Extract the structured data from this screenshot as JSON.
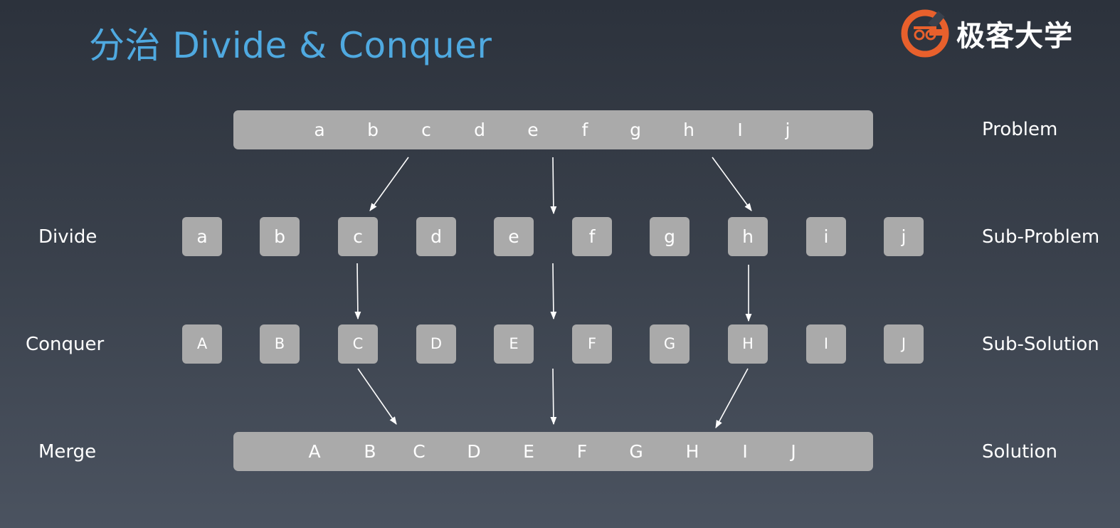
{
  "title": "分治 Divide & Conquer",
  "logo": {
    "text": "极客大学",
    "accent_color": "#e8602c"
  },
  "colors": {
    "title": "#4fa9e0",
    "box": "#aaaaaa",
    "text": "#ffffff",
    "arrow": "#ffffff"
  },
  "problem_letters": [
    "a",
    "b",
    "c",
    "d",
    "e",
    "f",
    "g",
    "h",
    "I",
    "j"
  ],
  "subproblem_letters": [
    "a",
    "b",
    "c",
    "d",
    "e",
    "f",
    "g",
    "h",
    "i",
    "j"
  ],
  "subsolution_letters": [
    "A",
    "B",
    "C",
    "D",
    "E",
    "F",
    "G",
    "H",
    "I",
    "J"
  ],
  "solution_letters": [
    "A",
    "B",
    "C",
    "D",
    "E",
    "F",
    "G",
    "H",
    "I",
    "J"
  ],
  "left_labels": {
    "divide": "Divide",
    "conquer": "Conquer",
    "merge": "Merge"
  },
  "right_labels": {
    "problem": "Problem",
    "sub_problem": "Sub-Problem",
    "sub_solution": "Sub-Solution",
    "solution": "Solution"
  }
}
